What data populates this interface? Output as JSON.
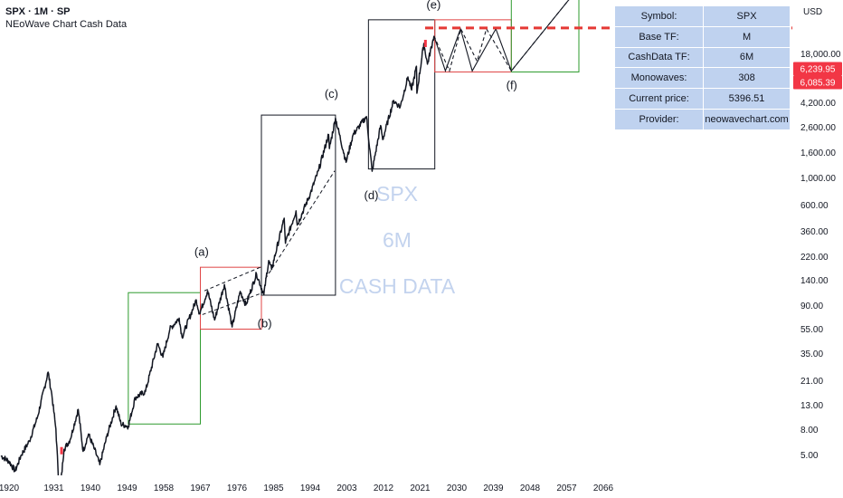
{
  "header": {
    "title": "SPX · 1M · SP",
    "subtitle": "NEoWave Chart Cash Data"
  },
  "watermark": [
    "SPX",
    "6M",
    "CASH DATA"
  ],
  "info_table": [
    {
      "key": "Symbol:",
      "value": "SPX"
    },
    {
      "key": "Base TF:",
      "value": "M"
    },
    {
      "key": "CashData TF:",
      "value": "6M"
    },
    {
      "key": "Monowaves:",
      "value": "308"
    },
    {
      "key": "Current price:",
      "value": "5396.51"
    },
    {
      "key": "Provider:",
      "value": "neowavechart.com"
    }
  ],
  "colors": {
    "price_line": "#131722",
    "green_box": "#2e9b2e",
    "red_box": "#e04545",
    "black_box": "#131722",
    "price_tag": "#f23645",
    "watermark": "#c3d3ee",
    "dashed_level": "#e53935"
  },
  "chart_data": {
    "type": "line",
    "title": "SPX · 1M · SP",
    "y_scale": "log",
    "currency_label": "USD",
    "x_ticks": [
      "1920",
      "1931",
      "1940",
      "1949",
      "1958",
      "1967",
      "1976",
      "1985",
      "1994",
      "2003",
      "2012",
      "2021",
      "2030",
      "2039",
      "2048",
      "2057",
      "2066"
    ],
    "y_ticks": [
      "18,000.00",
      "11,000.00",
      "4,200.00",
      "2,600.00",
      "1,600.00",
      "1,000.00",
      "600.00",
      "360.00",
      "220.00",
      "140.00",
      "90.00",
      "55.00",
      "35.00",
      "21.00",
      "13.00",
      "8.00",
      "5.00"
    ],
    "price_tags": [
      "6,239.95",
      "6,085.39"
    ],
    "series": [
      {
        "values": [
          [
            1918.0,
            8.6
          ],
          [
            1920.0,
            7.9
          ],
          [
            1921.5,
            6.8
          ],
          [
            1923.0,
            8.7
          ],
          [
            1925.0,
            10.8
          ],
          [
            1927.0,
            15.6
          ],
          [
            1929.6,
            31.0
          ],
          [
            1930.5,
            22.0
          ],
          [
            1931.5,
            13.0
          ],
          [
            1932.4,
            4.6
          ],
          [
            1933.5,
            9.5
          ],
          [
            1935.0,
            11.0
          ],
          [
            1937.0,
            17.5
          ],
          [
            1938.2,
            9.2
          ],
          [
            1939.5,
            12.0
          ],
          [
            1941.0,
            9.5
          ],
          [
            1942.3,
            7.5
          ],
          [
            1944.0,
            11.5
          ],
          [
            1946.3,
            18.5
          ],
          [
            1947.5,
            14.0
          ],
          [
            1949.3,
            13.5
          ],
          [
            1951.0,
            21.0
          ],
          [
            1953.5,
            23.0
          ],
          [
            1956.5,
            48.0
          ],
          [
            1957.8,
            39.0
          ],
          [
            1959.5,
            60.0
          ],
          [
            1961.8,
            71.0
          ],
          [
            1962.5,
            53.0
          ],
          [
            1966.0,
            94.0
          ],
          [
            1966.8,
            76.0
          ],
          [
            1968.8,
            108.0
          ],
          [
            1970.5,
            69.0
          ],
          [
            1972.9,
            119.0
          ],
          [
            1974.8,
            62.0
          ],
          [
            1976.8,
            107.0
          ],
          [
            1978.2,
            87.0
          ],
          [
            1980.8,
            140.0
          ],
          [
            1982.6,
            102.0
          ],
          [
            1983.8,
            172.0
          ],
          [
            1984.5,
            150.0
          ],
          [
            1987.6,
            329.0
          ],
          [
            1987.9,
            224.0
          ],
          [
            1990.5,
            368.0
          ],
          [
            1990.8,
            296.0
          ],
          [
            1994.0,
            478.0
          ],
          [
            1996.0,
            680.0
          ],
          [
            1998.5,
            1186.0
          ],
          [
            1998.7,
            957.0
          ],
          [
            2000.2,
            1527.0
          ],
          [
            2002.8,
            776.0
          ],
          [
            2004.5,
            1180.0
          ],
          [
            2007.8,
            1565.0
          ],
          [
            2009.2,
            676.0
          ],
          [
            2011.3,
            1364.0
          ],
          [
            2011.8,
            1099.0
          ],
          [
            2014.5,
            2000.0
          ],
          [
            2015.6,
            1867.0
          ],
          [
            2016.1,
            1810.0
          ],
          [
            2018.0,
            2872.0
          ],
          [
            2018.9,
            2350.0
          ],
          [
            2020.1,
            3380.0
          ],
          [
            2020.2,
            2237.0
          ],
          [
            2021.9,
            4800.0
          ],
          [
            2022.8,
            3492.0
          ],
          [
            2024.0,
            4840.0
          ],
          [
            2024.4,
            5396.0
          ]
        ]
      }
    ],
    "projection_paths": [
      {
        "style": "solid",
        "points": [
          [
            2024.4,
            5396.0
          ],
          [
            2027.2,
            3150.0
          ],
          [
            2030.9,
            6000.0
          ],
          [
            2033.8,
            3150.0
          ],
          [
            2039.6,
            6000.0
          ],
          [
            2043.4,
            3150.0
          ],
          [
            2066.3,
            18500.0
          ]
        ]
      },
      {
        "style": "dashed",
        "points": [
          [
            2024.4,
            5396.0
          ],
          [
            2028.2,
            3150.0
          ],
          [
            2031.0,
            6000.0
          ],
          [
            2035.0,
            3650.0
          ],
          [
            2037.3,
            6000.0
          ],
          [
            2043.4,
            3150.0
          ],
          [
            2066.3,
            18500.0
          ]
        ]
      }
    ],
    "wave_labels": [
      {
        "text": "(a)",
        "x": 1967.3,
        "y": 185.0
      },
      {
        "text": "(b)",
        "x": 1982.8,
        "y": 61.5
      },
      {
        "text": "(c)",
        "x": 1999.2,
        "y": 2080.0
      },
      {
        "text": "(d)",
        "x": 2009.0,
        "y": 440.0
      },
      {
        "text": "(e)",
        "x": 2024.3,
        "y": 8200.0
      },
      {
        "text": "(f)",
        "x": 2043.5,
        "y": 2380.0
      }
    ],
    "boxes": [
      {
        "color": "green",
        "x": [
          1949.3,
          1967.0
        ],
        "y": [
          14.0,
          105.0
        ]
      },
      {
        "color": "red",
        "x": [
          1967.0,
          1982.0
        ],
        "y": [
          60.0,
          155.0
        ]
      },
      {
        "color": "black",
        "x": [
          1982.0,
          2000.2
        ],
        "y": [
          101.0,
          1600.0
        ]
      },
      {
        "color": "black",
        "x": [
          2008.3,
          2024.6
        ],
        "y": [
          700.0,
          6900.0
        ]
      },
      {
        "color": "red",
        "x": [
          2024.6,
          2043.4
        ],
        "y": [
          3100.0,
          6900.0
        ]
      },
      {
        "color": "green",
        "x": [
          2043.4,
          2060.0
        ],
        "y": [
          3100.0,
          26500.0
        ]
      }
    ],
    "trend_lines": [
      {
        "style": "dashed",
        "from": [
          1967.5,
          75.0
        ],
        "to": [
          1982.0,
          104.0
        ]
      },
      {
        "style": "dashed",
        "from": [
          1968.0,
          108.0
        ],
        "to": [
          1982.0,
          156.0
        ]
      },
      {
        "style": "dashed",
        "from": [
          1983.0,
          130.0
        ],
        "to": [
          2000.0,
          680.0
        ]
      }
    ],
    "horizontal_level": 6085.39,
    "current_price": 5396.51,
    "current_marker": {
      "x": 2022.3,
      "y": 4800.0
    }
  }
}
